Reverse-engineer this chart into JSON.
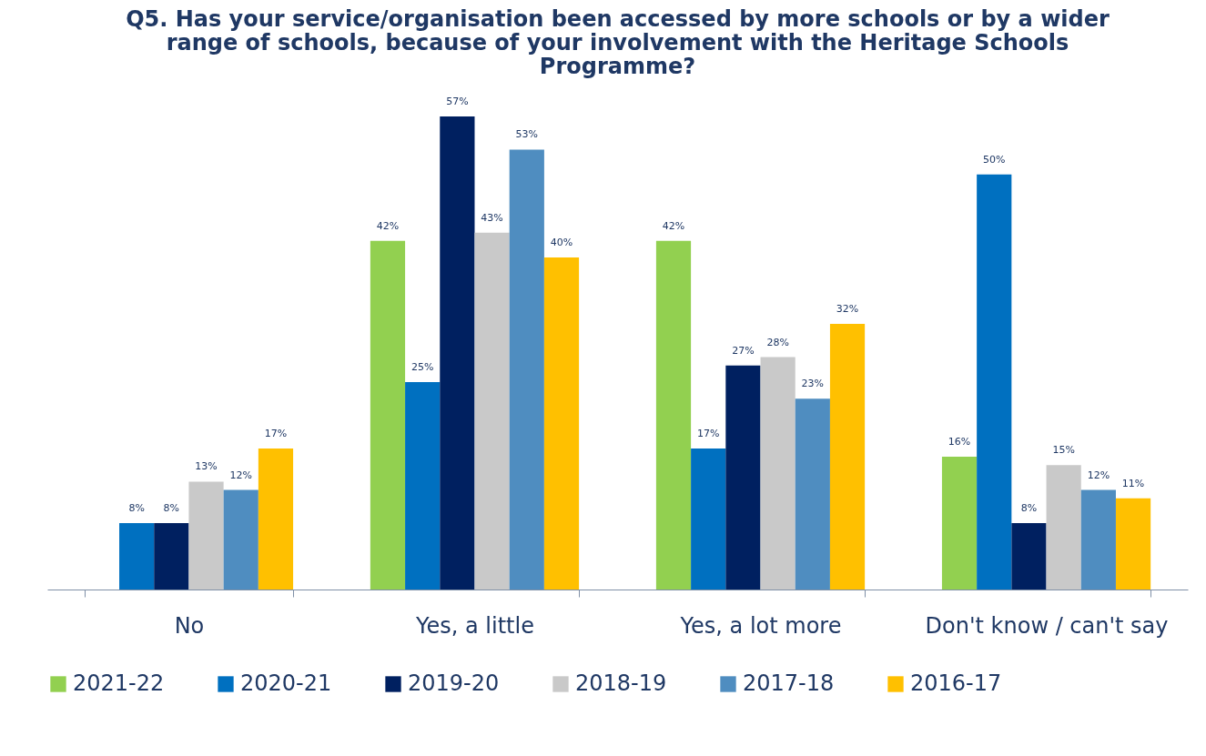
{
  "chart_data": {
    "type": "bar",
    "title": "Q5. Has your service/organisation been accessed by more schools or by a wider range of schools, because of your involvement with the Heritage Schools Programme?",
    "categories": [
      "No",
      "Yes, a little",
      "Yes, a lot more",
      "Don't know / can't say"
    ],
    "series": [
      {
        "name": "2021-22",
        "color": "#92d050",
        "values": [
          null,
          42,
          42,
          16
        ],
        "value_labels": [
          null,
          "42%",
          "42%",
          "16%"
        ]
      },
      {
        "name": "2020-21",
        "color": "#0070c0",
        "values": [
          8,
          25,
          17,
          50
        ],
        "value_labels": [
          "8%",
          "25%",
          "17%",
          "50%"
        ]
      },
      {
        "name": "2019-20",
        "color": "#002060",
        "values": [
          8,
          57,
          27,
          8
        ],
        "value_labels": [
          "8%",
          "57%",
          "27%",
          "8%"
        ]
      },
      {
        "name": "2018-19",
        "color": "#c9c9c9",
        "values": [
          13,
          43,
          28,
          15
        ],
        "value_labels": [
          "13%",
          "43%",
          "28%",
          "15%"
        ]
      },
      {
        "name": "2017-18",
        "color": "#4f8dc0",
        "values": [
          12,
          53,
          23,
          12
        ],
        "value_labels": [
          "12%",
          "53%",
          "23%",
          "12%"
        ]
      },
      {
        "name": "2016-17",
        "color": "#ffc000",
        "values": [
          17,
          40,
          32,
          11
        ],
        "value_labels": [
          "17%",
          "40%",
          "32%",
          "11%"
        ]
      }
    ],
    "legend": "bottom",
    "grid": false,
    "tick_labels": "x"
  }
}
